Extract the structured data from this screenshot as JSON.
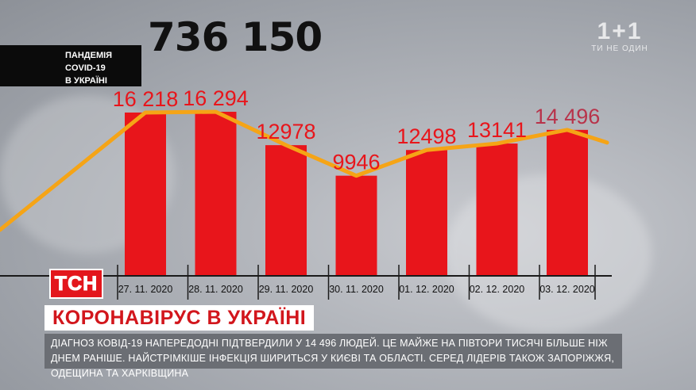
{
  "header": {
    "total": "736 150",
    "topic_lines": [
      "ПАНДЕМІЯ",
      "COVID-19",
      "В УКРАЇНІ"
    ]
  },
  "channel_logo": {
    "mark": "1+1",
    "sub": "ТИ НЕ ОДИН"
  },
  "chart_data": {
    "type": "bar",
    "categories": [
      "27. 11. 2020",
      "28. 11. 2020",
      "29. 11. 2020",
      "30. 11. 2020",
      "01. 12. 2020",
      "02. 12. 2020",
      "03. 12. 2020"
    ],
    "values": [
      16218,
      16294,
      12978,
      9946,
      12498,
      13141,
      14496
    ],
    "value_labels": [
      "16 218",
      "16 294",
      "12978",
      "9946",
      "12498",
      "13141",
      "14 496"
    ],
    "trend_line": true,
    "colors": {
      "bar": "#e8151b",
      "line": "#f5a416",
      "label": "#e8151b",
      "label_last": "#b8334a"
    }
  },
  "lower_third": {
    "tsn_logo": "ТСН",
    "headline": "КОРОНАВІРУС В УКРАЇНІ",
    "ticker": "Діагноз Ковід-19 напередодні підтвердили у 14 496 людей. Це майже на півтори тисячі більше ніж днем раніше. Найстрімкіше інфекція шириться у Києві та області. Серед лідерів також Запоріжжя, Одещина та Харківщина"
  }
}
